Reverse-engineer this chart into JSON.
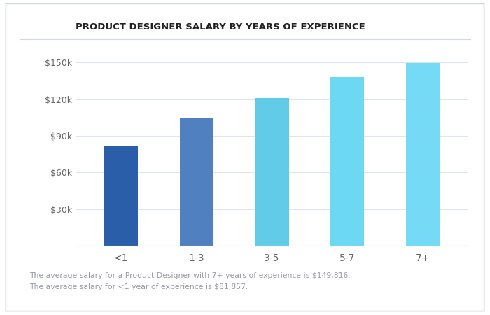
{
  "title": "PRODUCT DESIGNER SALARY BY YEARS OF EXPERIENCE",
  "categories": [
    "<1",
    "1-3",
    "3-5",
    "5-7",
    "7+"
  ],
  "values": [
    81857,
    105000,
    121000,
    138000,
    149816
  ],
  "bar_colors": [
    "#2a5ea8",
    "#5080c0",
    "#62cce8",
    "#6dd8f2",
    "#75daf5"
  ],
  "ylim": [
    0,
    160000
  ],
  "yticks": [
    0,
    30000,
    60000,
    90000,
    120000,
    150000
  ],
  "ytick_labels": [
    "",
    "$30k",
    "$60k",
    "$90k",
    "$120k",
    "$150k"
  ],
  "footnote_line1": "The average salary for a Product Designer with 7+ years of experience is $149,816.",
  "footnote_line2": "The average salary for <1 year of experience is $81,857.",
  "background_color": "#ffffff",
  "panel_background": "#f7f9fc",
  "border_color": "#d0d8e4",
  "grid_color": "#dde5ef",
  "title_color": "#222222",
  "tick_label_color": "#666666",
  "footnote_color": "#9999aa"
}
